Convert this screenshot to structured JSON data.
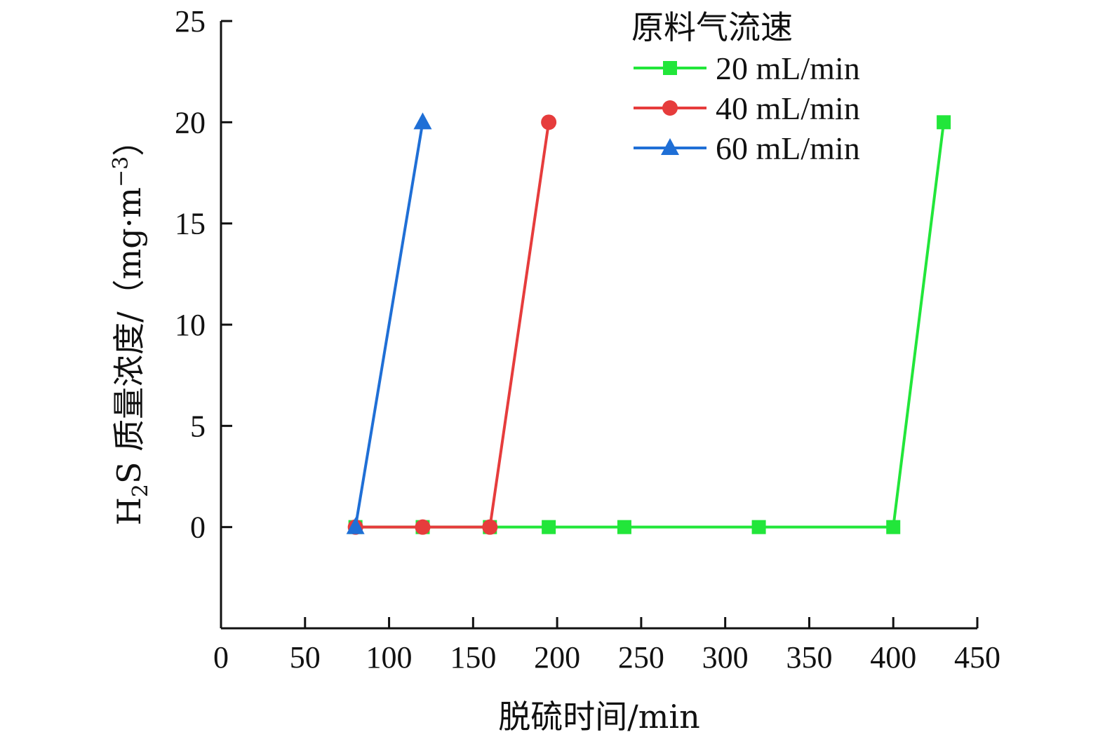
{
  "chart_data": {
    "type": "line",
    "xlabel": "脱硫时间/min",
    "ylabel": {
      "prefix": "H",
      "sub": "2",
      "middle": "S 质量浓度/（mg·m",
      "sup": "−3",
      "suffix": "）"
    },
    "xlim": [
      0,
      450
    ],
    "ylim": [
      -5,
      25
    ],
    "xticks": [
      0,
      50,
      100,
      150,
      200,
      250,
      300,
      350,
      400,
      450
    ],
    "yticks": [
      0,
      5,
      10,
      15,
      20,
      25
    ],
    "grid": false,
    "legend": {
      "title": "原料气流速",
      "position": "top-right"
    },
    "series": [
      {
        "name": "20 mL/min",
        "color": "#22e63a",
        "marker": "square",
        "x": [
          80,
          120,
          160,
          195,
          240,
          320,
          400,
          430
        ],
        "y": [
          0,
          0,
          0,
          0,
          0,
          0,
          0,
          20
        ]
      },
      {
        "name": "40 mL/min",
        "color": "#e63c3c",
        "marker": "circle",
        "x": [
          80,
          120,
          160,
          195
        ],
        "y": [
          0,
          0,
          0,
          20
        ]
      },
      {
        "name": "60 mL/min",
        "color": "#1f6fd6",
        "marker": "triangle",
        "x": [
          80,
          120
        ],
        "y": [
          0,
          20
        ]
      }
    ]
  }
}
